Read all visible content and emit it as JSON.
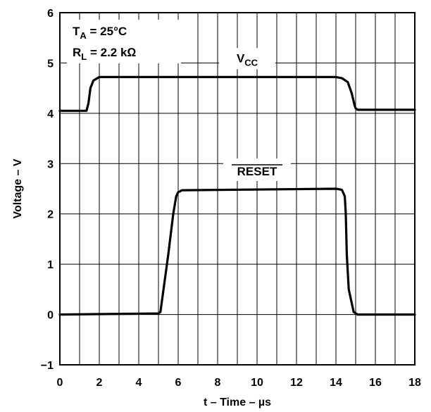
{
  "chart_data": {
    "type": "line",
    "xlabel": "t – Time – µs",
    "ylabel": "Voltage – V",
    "xlim": [
      0,
      18
    ],
    "ylim": [
      -1,
      6
    ],
    "x_ticks": [
      "0",
      "2",
      "4",
      "6",
      "8",
      "10",
      "12",
      "14",
      "16",
      "18"
    ],
    "x_tick_values": [
      0,
      2,
      4,
      6,
      8,
      10,
      12,
      14,
      16,
      18
    ],
    "y_ticks": [
      "−1",
      "0",
      "1",
      "2",
      "3",
      "4",
      "5",
      "6"
    ],
    "y_tick_values": [
      -1,
      0,
      1,
      2,
      3,
      4,
      5,
      6
    ],
    "grid": true,
    "x_minor_step": 1,
    "annotations": {
      "ta_main": "T",
      "ta_sub": "A",
      "ta_rest": " = 25°C",
      "rl_main": "R",
      "rl_sub": "L",
      "rl_rest": " = 2.2 kΩ"
    },
    "series": [
      {
        "name": "VCC",
        "label_main": "V",
        "label_sub": "CC",
        "overline": false,
        "label_at": [
          9.5,
          5.1
        ],
        "x": [
          0,
          1.35,
          1.45,
          1.55,
          1.7,
          2.0,
          14.0,
          14.3,
          14.6,
          14.8,
          14.95,
          15.0,
          15.1,
          15.3,
          18
        ],
        "y": [
          4.05,
          4.05,
          4.2,
          4.5,
          4.65,
          4.72,
          4.72,
          4.7,
          4.62,
          4.4,
          4.15,
          4.1,
          4.07,
          4.07,
          4.07
        ]
      },
      {
        "name": "RESET",
        "label_main": "RESET",
        "label_sub": "",
        "overline": true,
        "label_at": [
          10.0,
          2.85
        ],
        "x": [
          0,
          5.0,
          5.1,
          5.5,
          5.75,
          5.9,
          6.0,
          6.2,
          14.0,
          14.3,
          14.45,
          14.5,
          14.55,
          14.65,
          14.9,
          15.1,
          18
        ],
        "y": [
          0,
          0.02,
          0.05,
          1.2,
          2.0,
          2.35,
          2.43,
          2.47,
          2.5,
          2.48,
          2.35,
          2.0,
          1.2,
          0.5,
          0.05,
          0.0,
          0.0
        ]
      }
    ]
  }
}
